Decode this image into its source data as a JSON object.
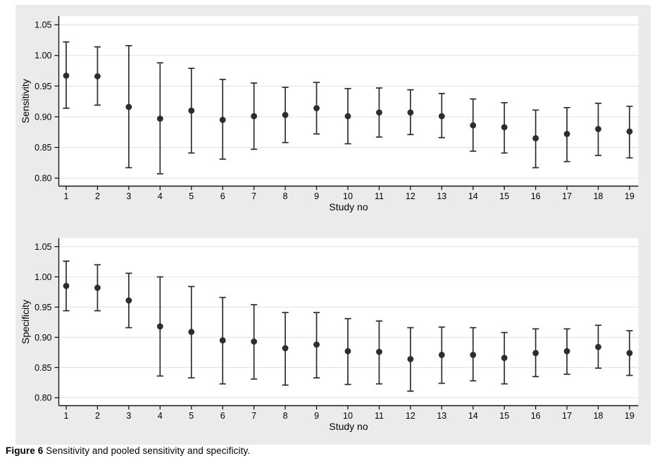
{
  "figure": {
    "caption_label": "Figure 6",
    "caption_text": "Sensitivity and pooled sensitivity and specificity."
  },
  "colors": {
    "panel_background": "#ebebeb",
    "plot_background": "#ffffff",
    "gridline": "#e6e6e6",
    "axis": "#161616",
    "marker": "#2d2d2d",
    "text": "#000000"
  },
  "chart_data": [
    {
      "type": "scatter",
      "subplot": "top",
      "name": "sensitivity",
      "title": "",
      "xlabel": "Study no",
      "ylabel": "Sensitivity",
      "x": [
        1,
        2,
        3,
        4,
        5,
        6,
        7,
        8,
        9,
        10,
        11,
        12,
        13,
        14,
        15,
        16,
        17,
        18,
        19
      ],
      "xtick_labels": [
        "1",
        "2",
        "3",
        "4",
        "5",
        "6",
        "7",
        "8",
        "9",
        "10",
        "11",
        "12",
        "13",
        "14",
        "15",
        "16",
        "17",
        "18",
        "19"
      ],
      "ytick_values": [
        0.8,
        0.85,
        0.9,
        0.95,
        1.0,
        1.05
      ],
      "ytick_labels": [
        "0.80",
        "0.85",
        "0.90",
        "0.95",
        "1.00",
        "1.05"
      ],
      "ylim": [
        0.787,
        1.064
      ],
      "grid": true,
      "legend": "none",
      "series": [
        {
          "name": "estimate",
          "values": [
            0.967,
            0.966,
            0.916,
            0.897,
            0.91,
            0.895,
            0.901,
            0.903,
            0.914,
            0.901,
            0.907,
            0.907,
            0.901,
            0.886,
            0.883,
            0.865,
            0.872,
            0.88,
            0.876
          ]
        },
        {
          "name": "ci_lower",
          "values": [
            0.914,
            0.919,
            0.817,
            0.807,
            0.841,
            0.831,
            0.847,
            0.858,
            0.872,
            0.856,
            0.867,
            0.871,
            0.866,
            0.844,
            0.841,
            0.817,
            0.827,
            0.837,
            0.833
          ]
        },
        {
          "name": "ci_upper",
          "values": [
            1.022,
            1.014,
            1.016,
            0.988,
            0.979,
            0.961,
            0.955,
            0.948,
            0.956,
            0.946,
            0.947,
            0.944,
            0.938,
            0.929,
            0.923,
            0.911,
            0.915,
            0.922,
            0.917
          ]
        }
      ]
    },
    {
      "type": "scatter",
      "subplot": "bottom",
      "name": "specificity",
      "title": "",
      "xlabel": "Study no",
      "ylabel": "Specificity",
      "x": [
        1,
        2,
        3,
        4,
        5,
        6,
        7,
        8,
        9,
        10,
        11,
        12,
        13,
        14,
        15,
        16,
        17,
        18,
        19
      ],
      "xtick_labels": [
        "1",
        "2",
        "3",
        "4",
        "5",
        "6",
        "7",
        "8",
        "9",
        "10",
        "11",
        "12",
        "13",
        "14",
        "15",
        "16",
        "17",
        "18",
        "19"
      ],
      "ytick_values": [
        0.8,
        0.85,
        0.9,
        0.95,
        1.0,
        1.05
      ],
      "ytick_labels": [
        "0.80",
        "0.85",
        "0.90",
        "0.95",
        "1.00",
        "1.05"
      ],
      "ylim": [
        0.787,
        1.064
      ],
      "grid": true,
      "legend": "none",
      "series": [
        {
          "name": "estimate",
          "values": [
            0.985,
            0.982,
            0.961,
            0.918,
            0.909,
            0.895,
            0.893,
            0.882,
            0.888,
            0.877,
            0.876,
            0.864,
            0.871,
            0.871,
            0.866,
            0.874,
            0.877,
            0.884,
            0.874
          ]
        },
        {
          "name": "ci_lower",
          "values": [
            0.944,
            0.944,
            0.916,
            0.836,
            0.833,
            0.823,
            0.831,
            0.821,
            0.833,
            0.822,
            0.823,
            0.811,
            0.824,
            0.828,
            0.823,
            0.835,
            0.839,
            0.849,
            0.837
          ]
        },
        {
          "name": "ci_upper",
          "values": [
            1.026,
            1.02,
            1.006,
            1.0,
            0.984,
            0.966,
            0.954,
            0.941,
            0.941,
            0.931,
            0.927,
            0.916,
            0.917,
            0.916,
            0.908,
            0.914,
            0.914,
            0.92,
            0.911
          ]
        }
      ]
    }
  ]
}
